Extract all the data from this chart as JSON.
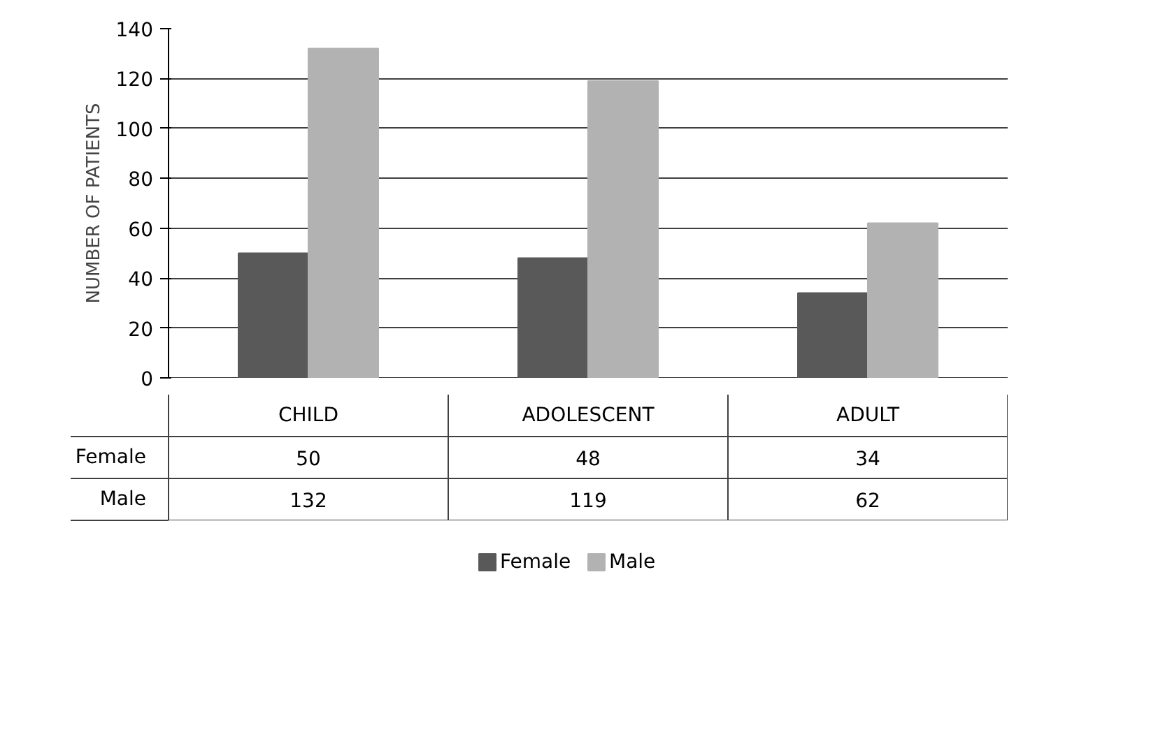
{
  "chart_data": {
    "type": "bar",
    "ylabel": "NUMBER OF PATIENTS",
    "categories": [
      "CHILD",
      "ADOLESCENT",
      "ADULT"
    ],
    "series": [
      {
        "name": "Female",
        "color": "#595959",
        "values": [
          50,
          48,
          34
        ]
      },
      {
        "name": "Male",
        "color": "#b2b2b2",
        "values": [
          132,
          119,
          62
        ]
      }
    ],
    "ylim": [
      0,
      140
    ],
    "yticks": [
      0,
      20,
      40,
      60,
      80,
      100,
      120,
      140
    ],
    "grid": "y",
    "legend": "bottom",
    "data_labels": true
  }
}
